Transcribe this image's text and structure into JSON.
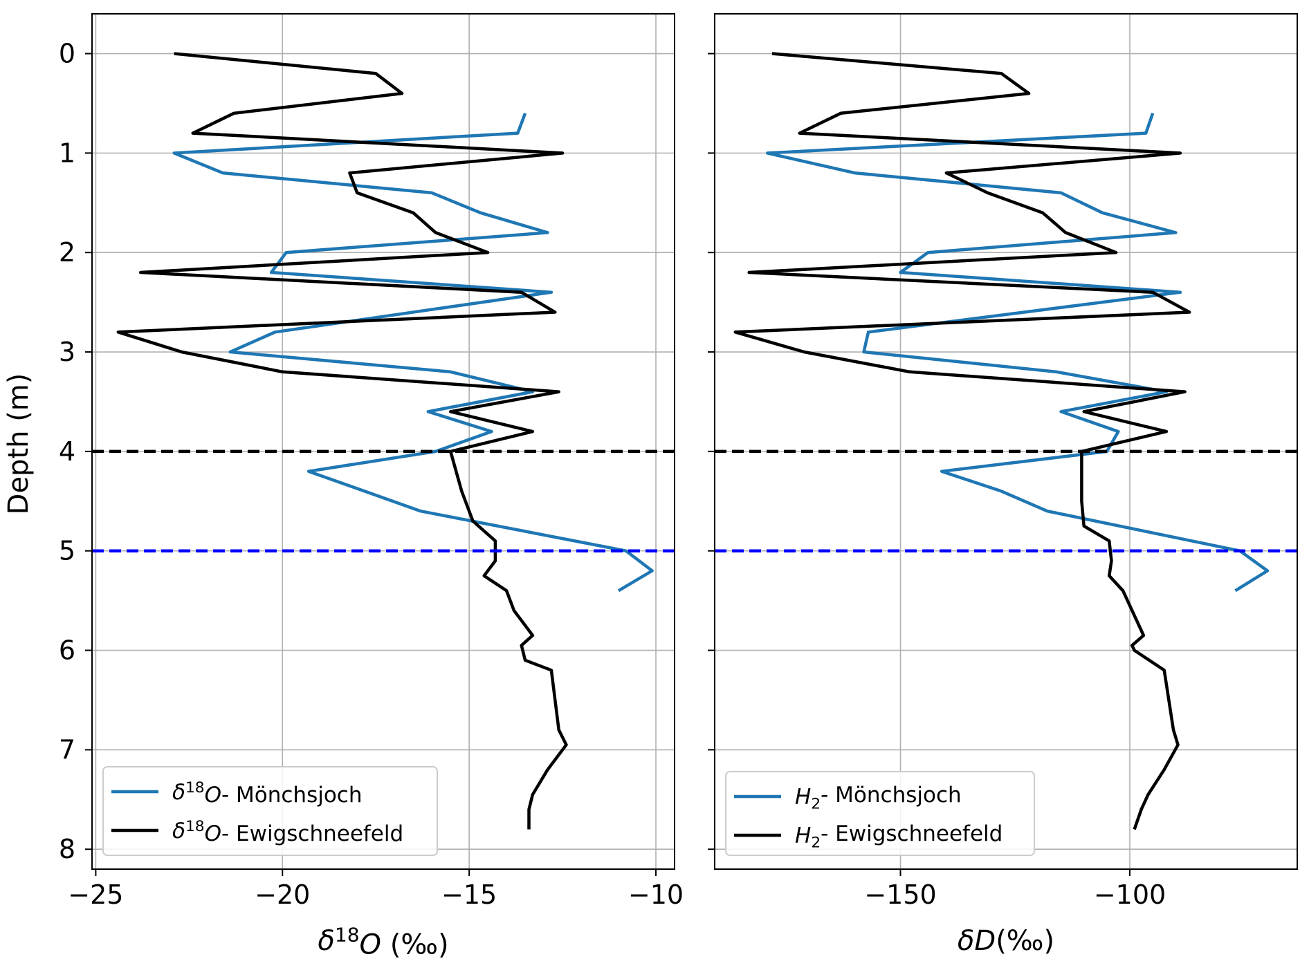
{
  "colors": {
    "blue_series": "#1f77b4",
    "black_series": "#000000",
    "black_dashed": "#000000",
    "blue_dashed": "#0000ff",
    "grid": "#b0b0b0"
  },
  "chart_data": [
    {
      "type": "line",
      "xlabel": "δ18O (‰)",
      "ylabel": "Depth (m)",
      "xlim": [
        -25.1,
        -9.5
      ],
      "ylim": [
        8.2,
        -0.4
      ],
      "y_inverted": true,
      "grid": true,
      "x_ticks": [
        -25,
        -20,
        -15,
        -10
      ],
      "x_tick_labels": [
        "−25",
        "−20",
        "−15",
        "−10"
      ],
      "y_ticks": [
        0,
        1,
        2,
        3,
        4,
        5,
        6,
        7,
        8
      ],
      "y_tick_labels": [
        "0",
        "1",
        "2",
        "3",
        "4",
        "5",
        "6",
        "7",
        "8"
      ],
      "legend_position": "lower-left",
      "hlines": [
        {
          "y": 4,
          "style": "dashed",
          "color": "#000000"
        },
        {
          "y": 5,
          "style": "dashed",
          "color": "#0000ff"
        }
      ],
      "series": [
        {
          "name": "δ18O- Mönchsjoch",
          "color": "#1f77b4",
          "points": [
            [
              -13.5,
              0.6
            ],
            [
              -13.7,
              0.8
            ],
            [
              -22.9,
              1.0
            ],
            [
              -21.6,
              1.2
            ],
            [
              -16.0,
              1.4
            ],
            [
              -14.7,
              1.6
            ],
            [
              -12.9,
              1.8
            ],
            [
              -19.9,
              2.0
            ],
            [
              -20.3,
              2.2
            ],
            [
              -12.8,
              2.4
            ],
            [
              -20.2,
              2.8
            ],
            [
              -21.4,
              3.0
            ],
            [
              -15.5,
              3.2
            ],
            [
              -13.3,
              3.4
            ],
            [
              -16.1,
              3.6
            ],
            [
              -14.4,
              3.8
            ],
            [
              -15.9,
              4.0
            ],
            [
              -19.3,
              4.2
            ],
            [
              -17.8,
              4.4
            ],
            [
              -16.3,
              4.6
            ],
            [
              -10.8,
              5.0
            ],
            [
              -10.1,
              5.2
            ],
            [
              -11.0,
              5.4
            ]
          ]
        },
        {
          "name": "δ18O- Ewigschneefeld",
          "color": "#000000",
          "points": [
            [
              -22.9,
              0.0
            ],
            [
              -17.5,
              0.2
            ],
            [
              -16.8,
              0.4
            ],
            [
              -21.3,
              0.6
            ],
            [
              -22.4,
              0.8
            ],
            [
              -12.5,
              1.0
            ],
            [
              -18.2,
              1.2
            ],
            [
              -18.0,
              1.4
            ],
            [
              -16.5,
              1.6
            ],
            [
              -15.9,
              1.8
            ],
            [
              -14.5,
              2.0
            ],
            [
              -23.8,
              2.2
            ],
            [
              -13.6,
              2.4
            ],
            [
              -12.7,
              2.6
            ],
            [
              -24.4,
              2.8
            ],
            [
              -22.7,
              3.0
            ],
            [
              -20.0,
              3.2
            ],
            [
              -12.6,
              3.4
            ],
            [
              -15.5,
              3.6
            ],
            [
              -13.3,
              3.8
            ],
            [
              -15.5,
              4.0
            ],
            [
              -15.2,
              4.4
            ],
            [
              -14.9,
              4.7
            ],
            [
              -14.3,
              4.9
            ],
            [
              -14.3,
              5.1
            ],
            [
              -14.6,
              5.25
            ],
            [
              -14.0,
              5.4
            ],
            [
              -13.8,
              5.6
            ],
            [
              -13.3,
              5.85
            ],
            [
              -13.6,
              5.95
            ],
            [
              -13.5,
              6.1
            ],
            [
              -12.8,
              6.2
            ],
            [
              -12.7,
              6.5
            ],
            [
              -12.6,
              6.8
            ],
            [
              -12.4,
              6.95
            ],
            [
              -12.9,
              7.2
            ],
            [
              -13.3,
              7.45
            ],
            [
              -13.4,
              7.6
            ],
            [
              -13.4,
              7.8
            ]
          ]
        }
      ]
    },
    {
      "type": "line",
      "xlabel": "δD(‰)",
      "ylabel": "",
      "xlim": [
        -190.5,
        -63.5
      ],
      "ylim": [
        8.2,
        -0.4
      ],
      "y_inverted": true,
      "grid": true,
      "x_ticks": [
        -150,
        -100
      ],
      "x_tick_labels": [
        "−150",
        "−100"
      ],
      "legend_position": "lower-left",
      "hlines": [
        {
          "y": 4,
          "style": "dashed",
          "color": "#000000"
        },
        {
          "y": 5,
          "style": "dashed",
          "color": "#0000ff"
        }
      ],
      "series": [
        {
          "name": "H2- Mönchsjoch",
          "color": "#1f77b4",
          "points": [
            [
              -95,
              0.6
            ],
            [
              -96.5,
              0.8
            ],
            [
              -179,
              1.0
            ],
            [
              -160,
              1.2
            ],
            [
              -115,
              1.4
            ],
            [
              -106,
              1.6
            ],
            [
              -90,
              1.8
            ],
            [
              -144,
              2.0
            ],
            [
              -150,
              2.2
            ],
            [
              -89,
              2.4
            ],
            [
              -157,
              2.8
            ],
            [
              -158,
              3.0
            ],
            [
              -116,
              3.2
            ],
            [
              -92,
              3.4
            ],
            [
              -115,
              3.6
            ],
            [
              -102.5,
              3.8
            ],
            [
              -105,
              4.0
            ],
            [
              -141,
              4.2
            ],
            [
              -128,
              4.4
            ],
            [
              -118,
              4.6
            ],
            [
              -76,
              5.0
            ],
            [
              -70,
              5.2
            ],
            [
              -77,
              5.4
            ]
          ]
        },
        {
          "name": "H2- Ewigschneefeld",
          "color": "#000000",
          "points": [
            [
              -178,
              0.0
            ],
            [
              -128,
              0.2
            ],
            [
              -122,
              0.4
            ],
            [
              -163,
              0.6
            ],
            [
              -172,
              0.8
            ],
            [
              -89,
              1.0
            ],
            [
              -140,
              1.2
            ],
            [
              -131,
              1.4
            ],
            [
              -119,
              1.6
            ],
            [
              -114,
              1.8
            ],
            [
              -103,
              2.0
            ],
            [
              -183,
              2.2
            ],
            [
              -95,
              2.4
            ],
            [
              -87,
              2.6
            ],
            [
              -186,
              2.8
            ],
            [
              -171,
              3.0
            ],
            [
              -148,
              3.2
            ],
            [
              -88,
              3.4
            ],
            [
              -110,
              3.6
            ],
            [
              -92,
              3.8
            ],
            [
              -110.5,
              4.0
            ],
            [
              -110.5,
              4.5
            ],
            [
              -110,
              4.75
            ],
            [
              -104.5,
              4.9
            ],
            [
              -104,
              5.1
            ],
            [
              -104.5,
              5.25
            ],
            [
              -101.5,
              5.4
            ],
            [
              -99.5,
              5.6
            ],
            [
              -97,
              5.85
            ],
            [
              -99.5,
              5.95
            ],
            [
              -99,
              6.0
            ],
            [
              -92.5,
              6.2
            ],
            [
              -91.5,
              6.5
            ],
            [
              -90.5,
              6.8
            ],
            [
              -89.5,
              6.95
            ],
            [
              -92.5,
              7.2
            ],
            [
              -96,
              7.45
            ],
            [
              -97.5,
              7.6
            ],
            [
              -99,
              7.8
            ]
          ]
        }
      ]
    }
  ]
}
